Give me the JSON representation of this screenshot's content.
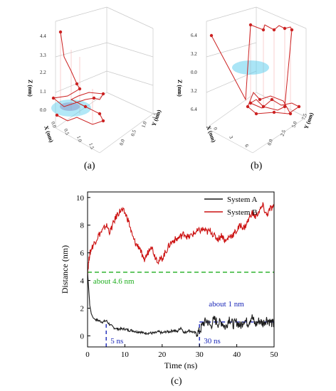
{
  "panels": {
    "a": {
      "label": "(a)",
      "axes": {
        "z": "Z (nm)",
        "x": "X (nm)",
        "y": "Y (nm)"
      },
      "z_ticks": [
        "4.4",
        "3.3",
        "2.2",
        "1.1",
        "0.0"
      ],
      "x_ticks": [
        "0.0",
        "0.5",
        "1.0",
        "1.5"
      ],
      "y_ticks": [
        "0.0",
        "0.5",
        "1.0",
        "1.5"
      ]
    },
    "b": {
      "label": "(b)",
      "axes": {
        "z": "Z (nm)",
        "x": "X (nm)",
        "y": "Y (nm)"
      },
      "z_ticks": [
        "6.4",
        "3.2",
        "0.0",
        "3.2",
        "6.4"
      ],
      "x_ticks": [
        "0",
        "3",
        "6"
      ],
      "y_ticks": [
        "0.0",
        "2.5",
        "5.0",
        "7.5"
      ]
    },
    "c": {
      "label": "(c)"
    }
  },
  "colors": {
    "system_a": "#1a1a1a",
    "system_b": "#cc1111",
    "green": "#1fae1f",
    "blue": "#1a27b8",
    "cyan": "#55ccee"
  },
  "chart_data": {
    "type": "line",
    "xlabel": "Time (ns)",
    "ylabel": "Distance (nm)",
    "xlim": [
      0,
      50
    ],
    "ylim": [
      -0.8,
      10.4
    ],
    "xticks": [
      0,
      10,
      20,
      30,
      40,
      50
    ],
    "yticks": [
      0,
      2,
      4,
      6,
      8,
      10
    ],
    "legend": "top-right",
    "series": [
      {
        "name": "System A",
        "x": [
          0,
          0.3,
          0.6,
          1,
          1.5,
          2,
          3,
          4,
          5,
          6,
          7,
          8,
          9,
          10,
          11,
          12,
          13,
          14,
          15,
          16,
          17,
          18,
          19,
          20,
          21,
          22,
          23,
          24,
          25,
          26,
          27,
          28,
          29,
          30,
          31,
          32,
          33,
          34,
          35,
          36,
          37,
          38,
          39,
          40,
          41,
          42,
          43,
          44,
          45,
          46,
          47,
          48,
          49,
          50
        ],
        "y": [
          4.6,
          3.4,
          2.2,
          1.6,
          1.3,
          1.2,
          1.1,
          1.0,
          1.1,
          0.8,
          0.6,
          0.5,
          0.5,
          0.5,
          0.4,
          0.4,
          0.3,
          0.3,
          0.2,
          0.2,
          0.2,
          0.2,
          0.3,
          0.2,
          0.3,
          0.3,
          0.4,
          0.3,
          0.6,
          0.2,
          0.4,
          0.3,
          0.2,
          0.3,
          0.9,
          1.1,
          0.7,
          1.2,
          0.9,
          1.0,
          0.6,
          1.3,
          0.8,
          1.0,
          0.7,
          1.2,
          0.9,
          1.4,
          0.8,
          1.1,
          0.9,
          1.2,
          1.0,
          0.8
        ]
      },
      {
        "name": "System B",
        "x": [
          0,
          0.5,
          1,
          2,
          3,
          4,
          5,
          6,
          7,
          8,
          9,
          10,
          11,
          12,
          13,
          14,
          15,
          16,
          17,
          18,
          19,
          20,
          21,
          22,
          23,
          24,
          25,
          26,
          27,
          28,
          29,
          30,
          31,
          32,
          33,
          34,
          35,
          36,
          37,
          38,
          39,
          40,
          41,
          42,
          43,
          44,
          45,
          46,
          47,
          48,
          49,
          50
        ],
        "y": [
          4.6,
          5.8,
          6.3,
          6.8,
          7.3,
          7.6,
          8.0,
          7.5,
          8.2,
          8.8,
          9.1,
          8.9,
          8.3,
          7.2,
          6.6,
          6.4,
          5.4,
          5.9,
          6.6,
          5.8,
          5.4,
          5.6,
          6.1,
          6.6,
          6.9,
          7.0,
          7.2,
          7.4,
          7.1,
          7.3,
          7.5,
          7.6,
          7.7,
          7.5,
          7.6,
          7.2,
          7.0,
          7.3,
          6.8,
          7.2,
          7.3,
          7.6,
          8.0,
          7.8,
          8.3,
          8.9,
          8.6,
          9.0,
          9.4,
          8.7,
          9.2,
          9.3
        ]
      }
    ],
    "annotations": [
      {
        "text": "about 4.6 nm",
        "y": 4.6,
        "style": "dashed-horizontal",
        "color": "#1fae1f"
      },
      {
        "text": "5 ns",
        "x": 5,
        "style": "dashed-vertical",
        "color": "#1a27b8"
      },
      {
        "text": "30 ns",
        "x": 30,
        "style": "dashed-vertical",
        "color": "#1a27b8"
      },
      {
        "text": "about 1 nm",
        "y": 1,
        "x_range": [
          30,
          50
        ],
        "style": "dashed-horizontal",
        "color": "#1a27b8"
      }
    ]
  }
}
